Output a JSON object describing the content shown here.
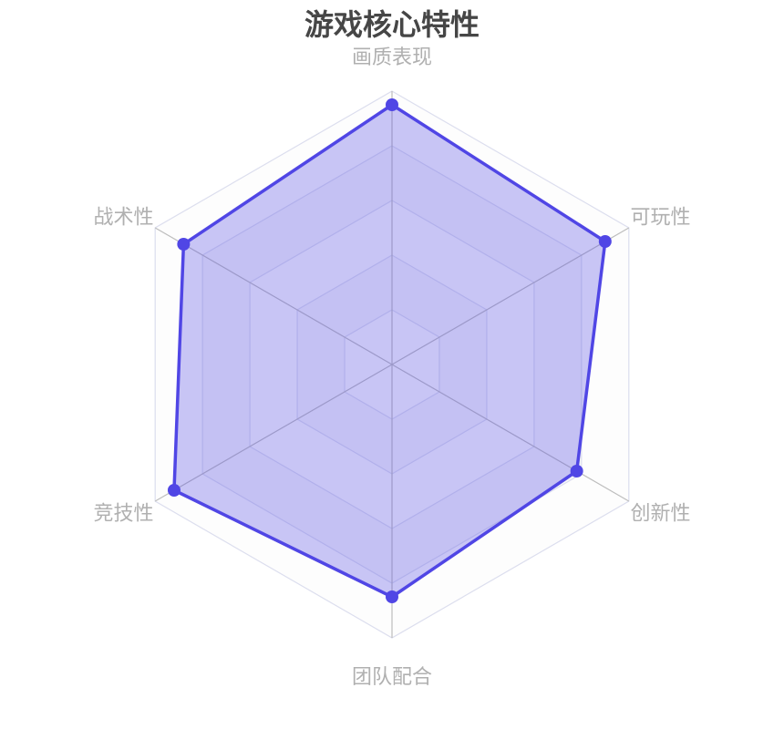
{
  "chart_data": {
    "type": "radar",
    "title": "游戏核心特性",
    "indicators": [
      "画质表现",
      "可玩性",
      "创新性",
      "团队配合",
      "竞技性",
      "战术性"
    ],
    "max": 100,
    "split_number": 5,
    "series": [
      {
        "values": [
          95,
          90,
          78,
          85,
          92,
          88
        ],
        "color": "#5046e5"
      }
    ],
    "legend": "none"
  }
}
